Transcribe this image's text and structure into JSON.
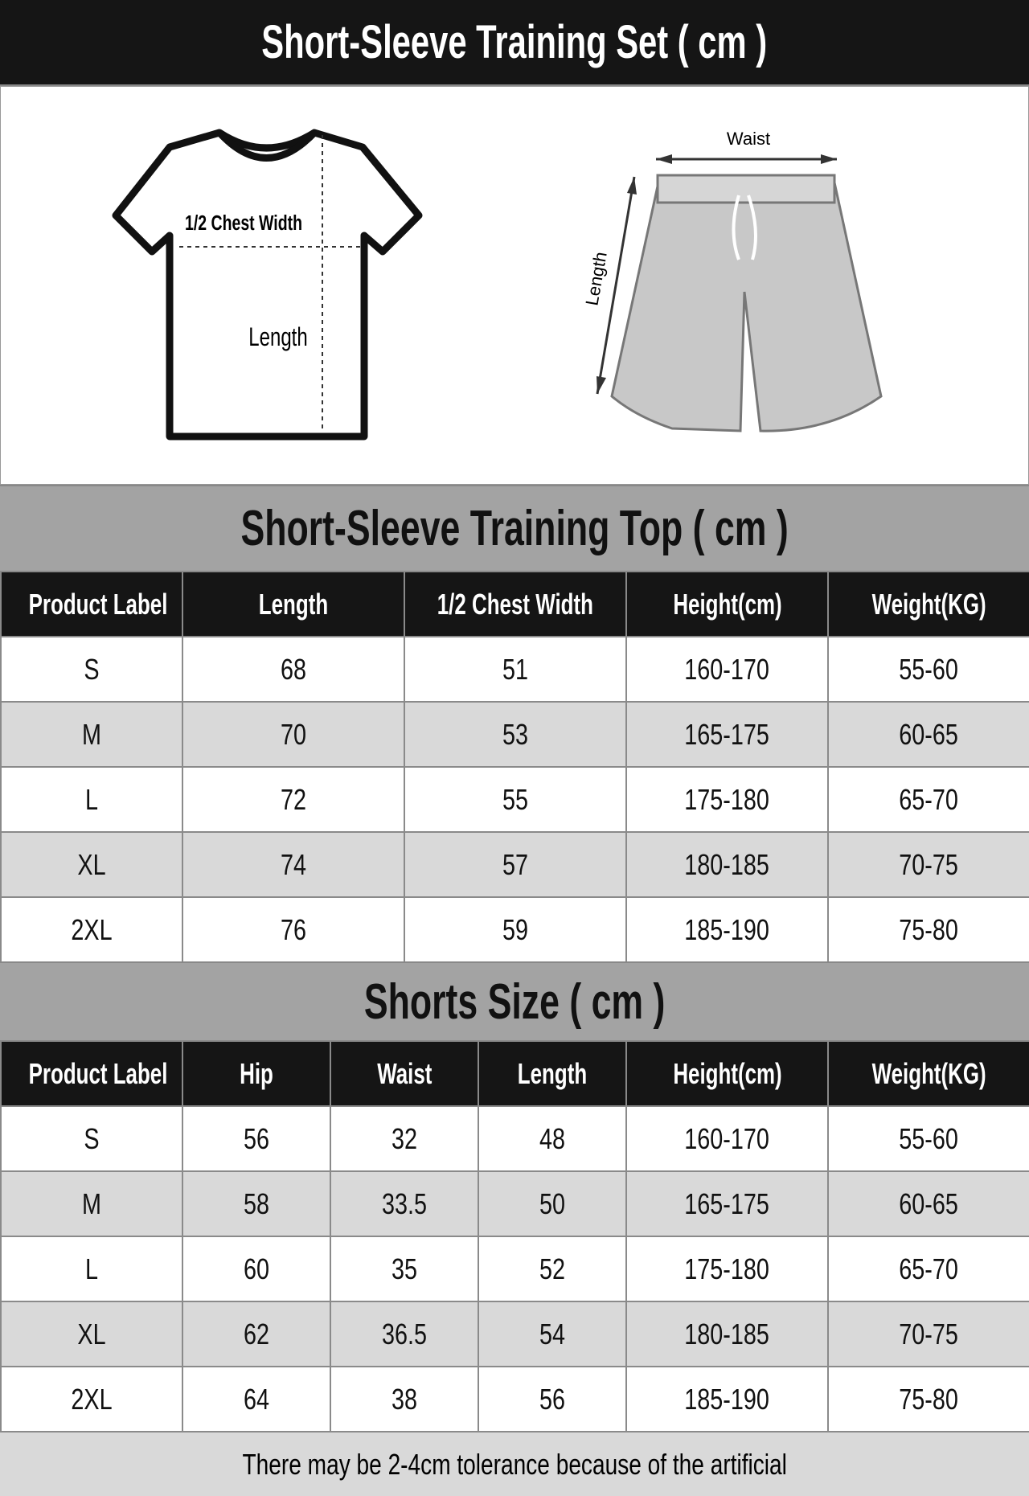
{
  "title": "Short-Sleeve Training Set ( cm )",
  "illustration": {
    "top_labels": {
      "chest": "1/2 Chest Width",
      "length": "Length"
    },
    "shorts_labels": {
      "waist": "Waist",
      "length": "Length"
    }
  },
  "top_section": {
    "title": "Short-Sleeve Training Top ( cm )",
    "headers": [
      "Product Label",
      "Length",
      "1/2 Chest Width",
      "Height(cm)",
      "Weight(KG)"
    ],
    "rows": [
      [
        "S",
        "68",
        "51",
        "160-170",
        "55-60"
      ],
      [
        "M",
        "70",
        "53",
        "165-175",
        "60-65"
      ],
      [
        "L",
        "72",
        "55",
        "175-180",
        "65-70"
      ],
      [
        "XL",
        "74",
        "57",
        "180-185",
        "70-75"
      ],
      [
        "2XL",
        "76",
        "59",
        "185-190",
        "75-80"
      ]
    ]
  },
  "shorts_section": {
    "title": "Shorts Size ( cm )",
    "headers": [
      "Product Label",
      "Hip",
      "Waist",
      "Length",
      "Height(cm)",
      "Weight(KG)"
    ],
    "rows": [
      [
        "S",
        "56",
        "32",
        "48",
        "160-170",
        "55-60"
      ],
      [
        "M",
        "58",
        "33.5",
        "50",
        "165-175",
        "60-65"
      ],
      [
        "L",
        "60",
        "35",
        "52",
        "175-180",
        "65-70"
      ],
      [
        "XL",
        "62",
        "36.5",
        "54",
        "180-185",
        "70-75"
      ],
      [
        "2XL",
        "64",
        "38",
        "56",
        "185-190",
        "75-80"
      ]
    ]
  },
  "footer": "There may be 2-4cm tolerance because of the artificial"
}
